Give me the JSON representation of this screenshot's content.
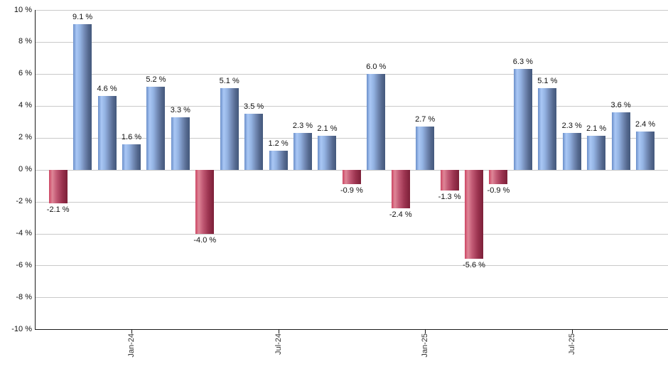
{
  "chart_data": {
    "type": "bar",
    "title": "",
    "xlabel": "",
    "ylabel": "",
    "unit": "%",
    "ylim": [
      -10,
      10
    ],
    "y_tick_step": 2,
    "grid": true,
    "values": [
      -2.1,
      9.1,
      4.6,
      1.6,
      5.2,
      3.3,
      -4.0,
      5.1,
      3.5,
      1.2,
      2.3,
      2.1,
      -0.9,
      6.0,
      -2.4,
      2.7,
      -1.3,
      -5.6,
      -0.9,
      6.3,
      5.1,
      2.3,
      2.1,
      3.6,
      2.4
    ],
    "bar_labels": [
      "-2.1 %",
      "9.1 %",
      "4.6 %",
      "1.6 %",
      "5.2 %",
      "3.3 %",
      "-4.0 %",
      "5.1 %",
      "3.5 %",
      "1.2 %",
      "2.3 %",
      "2.1 %",
      "-0.9 %",
      "6.0 %",
      "-2.4 %",
      "2.7 %",
      "-1.3 %",
      "-5.6 %",
      "-0.9 %",
      "6.3 %",
      "5.1 %",
      "2.3 %",
      "2.1 %",
      "3.6 %",
      "2.4 %"
    ],
    "y_axis_labels": [
      "10 %",
      "8 %",
      "6 %",
      "4 %",
      "2 %",
      "0 %",
      "-2 %",
      "-4 %",
      "-6 %",
      "-8 %",
      "-10 %"
    ],
    "x_ticks": [
      {
        "label": "Jan-24",
        "bar_index": 3
      },
      {
        "label": "Jul-24",
        "bar_index": 9
      },
      {
        "label": "Jan-25",
        "bar_index": 15
      },
      {
        "label": "Jul-25",
        "bar_index": 21
      }
    ],
    "colors": {
      "positive_bar": "#7ba1dd",
      "positive_bar_highlight": "#a9c7f5",
      "positive_bar_shadow": "#43587c",
      "negative_bar": "#c94a66",
      "negative_bar_highlight": "#de8697",
      "negative_bar_shadow": "#7c2038",
      "gridline": "#c9c9c9",
      "axis": "#1a1a1a",
      "label_text": "#111111"
    },
    "legend": null
  }
}
